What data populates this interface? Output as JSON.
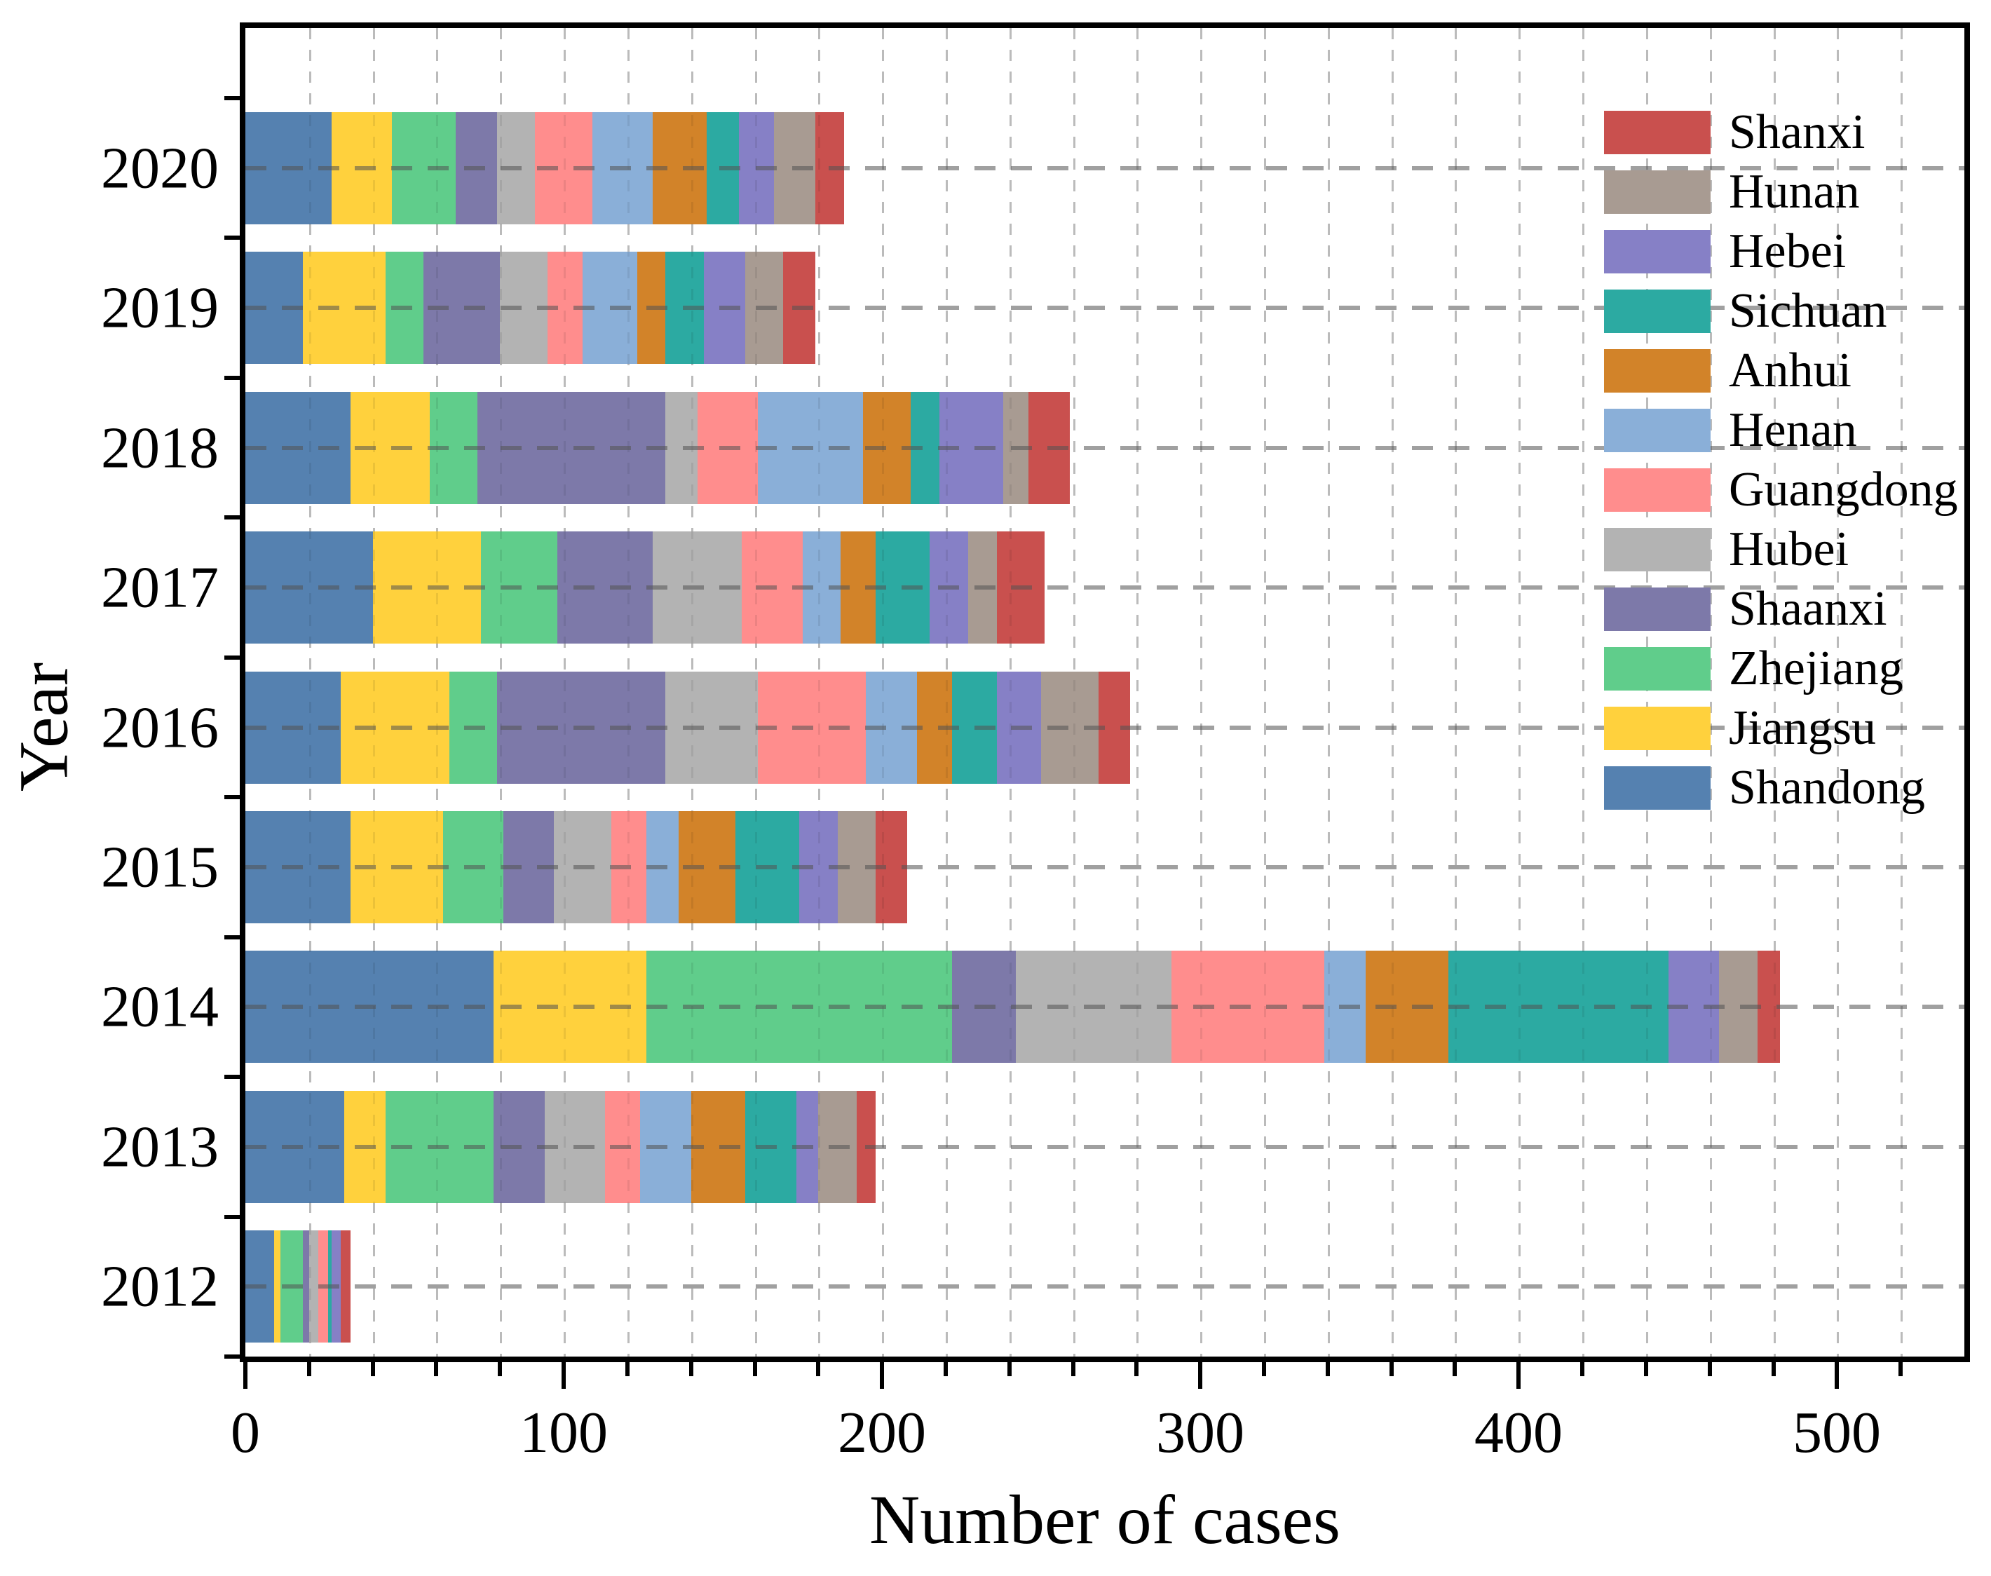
{
  "axis_titles": {
    "x": "Number of cases",
    "y": "Year"
  },
  "chart_data": {
    "type": "bar",
    "orientation": "horizontal",
    "stacked": true,
    "title": "",
    "xlabel": "Number of cases",
    "ylabel": "Year",
    "xlim": [
      0,
      540
    ],
    "x_major_ticks": [
      0,
      100,
      200,
      300,
      400,
      500
    ],
    "x_minor_step": 20,
    "grid": true,
    "legend_position": "top-right-inside",
    "categories": [
      "2020",
      "2019",
      "2018",
      "2017",
      "2016",
      "2015",
      "2014",
      "2013",
      "2012"
    ],
    "series": [
      {
        "name": "Shandong",
        "color": "#5581B0",
        "values": [
          27,
          18,
          33,
          40,
          30,
          33,
          78,
          31,
          9
        ]
      },
      {
        "name": "Jiangsu",
        "color": "#FFD13D",
        "values": [
          19,
          26,
          25,
          34,
          34,
          29,
          48,
          13,
          2
        ]
      },
      {
        "name": "Zhejiang",
        "color": "#60CD8B",
        "values": [
          20,
          12,
          15,
          24,
          15,
          19,
          96,
          34,
          7
        ]
      },
      {
        "name": "Shaanxi",
        "color": "#7D79A9",
        "values": [
          13,
          24,
          59,
          30,
          53,
          16,
          20,
          16,
          2
        ]
      },
      {
        "name": "Hubei",
        "color": "#B3B3B3",
        "values": [
          12,
          15,
          10,
          28,
          29,
          18,
          49,
          19,
          3
        ]
      },
      {
        "name": "Guangdong",
        "color": "#FF8D8D",
        "values": [
          18,
          11,
          19,
          19,
          34,
          11,
          48,
          11,
          3
        ]
      },
      {
        "name": "Henan",
        "color": "#8AAFD8",
        "values": [
          19,
          17,
          33,
          12,
          16,
          10,
          13,
          16,
          0
        ]
      },
      {
        "name": "Anhui",
        "color": "#D28329",
        "values": [
          17,
          9,
          15,
          11,
          11,
          18,
          26,
          17,
          0
        ]
      },
      {
        "name": "Sichuan",
        "color": "#2CAAA2",
        "values": [
          10,
          12,
          9,
          17,
          14,
          20,
          69,
          16,
          1
        ]
      },
      {
        "name": "Hebei",
        "color": "#8680C6",
        "values": [
          11,
          13,
          20,
          12,
          14,
          12,
          16,
          7,
          3
        ]
      },
      {
        "name": "Hunan",
        "color": "#A89B92",
        "values": [
          13,
          12,
          8,
          9,
          18,
          12,
          12,
          12,
          0
        ]
      },
      {
        "name": "Shanxi",
        "color": "#C9504E",
        "values": [
          9,
          10,
          13,
          15,
          10,
          10,
          7,
          6,
          3
        ]
      }
    ],
    "legend_order": [
      "Shanxi",
      "Hunan",
      "Hebei",
      "Sichuan",
      "Anhui",
      "Henan",
      "Guangdong",
      "Hubei",
      "Shaanxi",
      "Zhejiang",
      "Jiangsu",
      "Shandong"
    ]
  }
}
